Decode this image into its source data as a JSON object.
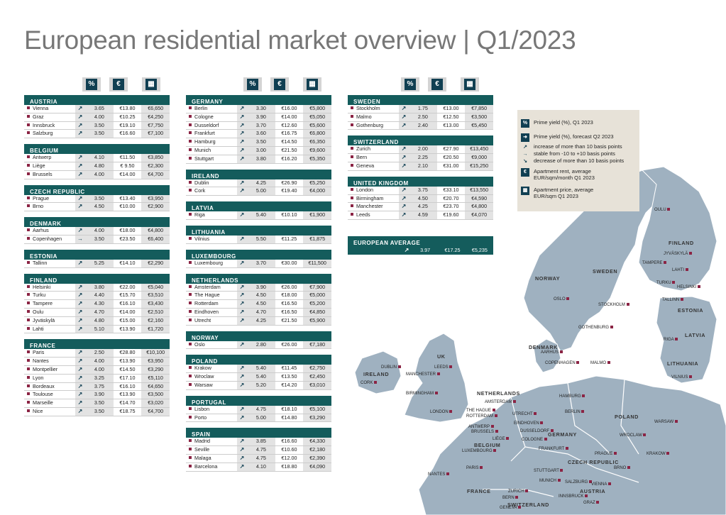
{
  "title": "European residential market overview | Q1/2023",
  "header_icons": [
    "%",
    "€",
    "calculator-icon"
  ],
  "col1": [
    {
      "country": "AUSTRIA",
      "rows": [
        [
          "Vienna",
          "↗",
          "3.65",
          "€13.80",
          "€6,650"
        ],
        [
          "Graz",
          "↗",
          "4.00",
          "€10.25",
          "€4,250"
        ],
        [
          "Innsbruck",
          "↗",
          "3.50",
          "€19.10",
          "€7,750"
        ],
        [
          "Salzburg",
          "↗",
          "3.50",
          "€16.60",
          "€7,100"
        ]
      ]
    },
    {
      "country": "BELGIUM",
      "rows": [
        [
          "Antwerp",
          "↗",
          "4.10",
          "€11.50",
          "€3,850"
        ],
        [
          "Liège",
          "↗",
          "4.80",
          "€ 9.50",
          "€2,300"
        ],
        [
          "Brussels",
          "↗",
          "4.00",
          "€14.00",
          "€4,700"
        ]
      ]
    },
    {
      "country": "CZECH REPUBLIC",
      "rows": [
        [
          "Prague",
          "↗",
          "3.50",
          "€13.40",
          "€3,950"
        ],
        [
          "Brno",
          "↗",
          "4.50",
          "€10.00",
          "€2,900"
        ]
      ]
    },
    {
      "country": "DENMARK",
      "rows": [
        [
          "Aarhus",
          "↗",
          "4.00",
          "€18.00",
          "€4,800"
        ],
        [
          "Copenhagen",
          "→",
          "3.50",
          "€23.50",
          "€6,400"
        ]
      ]
    },
    {
      "country": "ESTONIA",
      "rows": [
        [
          "Tallinn",
          "↗",
          "5.25",
          "€14.10",
          "€2,290"
        ]
      ]
    },
    {
      "country": "FINLAND",
      "rows": [
        [
          "Helsinki",
          "↗",
          "3.80",
          "€22.00",
          "€5,040"
        ],
        [
          "Turku",
          "↗",
          "4.40",
          "€15.70",
          "€3,510"
        ],
        [
          "Tampere",
          "↗",
          "4.30",
          "€16.10",
          "€3,430"
        ],
        [
          "Oulu",
          "↗",
          "4.70",
          "€14.00",
          "€2,510"
        ],
        [
          "Jyväskylä",
          "↗",
          "4.80",
          "€15.00",
          "€2,160"
        ],
        [
          "Lahti",
          "↗",
          "5.10",
          "€13.90",
          "€1,720"
        ]
      ]
    },
    {
      "country": "FRANCE",
      "rows": [
        [
          "Paris",
          "↗",
          "2.50",
          "€28.80",
          "€10,100"
        ],
        [
          "Nantes",
          "↗",
          "4.00",
          "€13.90",
          "€3,950"
        ],
        [
          "Montpellier",
          "↗",
          "4.00",
          "€14.50",
          "€3,290"
        ],
        [
          "Lyon",
          "↗",
          "3.25",
          "€17.10",
          "€5,110"
        ],
        [
          "Bordeaux",
          "↗",
          "3.75",
          "€16.10",
          "€4,650"
        ],
        [
          "Toulouse",
          "↗",
          "3.90",
          "€13.90",
          "€3,500"
        ],
        [
          "Marseille",
          "↗",
          "3.50",
          "€14.70",
          "€3,020"
        ],
        [
          "Nice",
          "↗",
          "3.50",
          "€18.75",
          "€4,700"
        ]
      ]
    }
  ],
  "col2": [
    {
      "country": "GERMANY",
      "rows": [
        [
          "Berlin",
          "↗",
          "3.30",
          "€16.00",
          "€5,800"
        ],
        [
          "Cologne",
          "↗",
          "3.90",
          "€14.00",
          "€5,050"
        ],
        [
          "Dusseldorf",
          "↗",
          "3.70",
          "€12.60",
          "€5,600"
        ],
        [
          "Frankfurt",
          "↗",
          "3.60",
          "€16.75",
          "€6,800"
        ],
        [
          "Hamburg",
          "↗",
          "3.50",
          "€14.50",
          "€6,350"
        ],
        [
          "Munich",
          "↗",
          "3.00",
          "€21.50",
          "€9,600"
        ],
        [
          "Stuttgart",
          "↗",
          "3.80",
          "€16.20",
          "€5,350"
        ]
      ]
    },
    {
      "country": "IRELAND",
      "rows": [
        [
          "Dublin",
          "↗",
          "4.25",
          "€26.90",
          "€5,250"
        ],
        [
          "Cork",
          "↗",
          "5.00",
          "€19.40",
          "€4,000"
        ]
      ]
    },
    {
      "country": "LATVIA",
      "rows": [
        [
          "Riga",
          "↗",
          "5.40",
          "€10.10",
          "€1,900"
        ]
      ]
    },
    {
      "country": "LITHUANIA",
      "rows": [
        [
          "Vilnius",
          "↗",
          "5.50",
          "€11.25",
          "€1,875"
        ]
      ]
    },
    {
      "country": "LUXEMBOURG",
      "rows": [
        [
          "Luxembourg",
          "↗",
          "3.70",
          "€30.00",
          "€11,500"
        ]
      ]
    },
    {
      "country": "NETHERLANDS",
      "rows": [
        [
          "Amsterdam",
          "↗",
          "3.90",
          "€26.00",
          "€7,900"
        ],
        [
          "The Hague",
          "↗",
          "4.50",
          "€18.00",
          "€5,000"
        ],
        [
          "Rotterdam",
          "↗",
          "4.50",
          "€16.50",
          "€5,200"
        ],
        [
          "Eindhoven",
          "↗",
          "4.70",
          "€16.50",
          "€4,850"
        ],
        [
          "Utrecht",
          "↗",
          "4.25",
          "€21.50",
          "€5,900"
        ]
      ]
    },
    {
      "country": "NORWAY",
      "rows": [
        [
          "Oslo",
          "↗",
          "2.80",
          "€26.00",
          "€7,180"
        ]
      ]
    },
    {
      "country": "POLAND",
      "rows": [
        [
          "Krakow",
          "↗",
          "5.40",
          "€11.45",
          "€2,750"
        ],
        [
          "Wroclaw",
          "↗",
          "5.40",
          "€13.50",
          "€2,450"
        ],
        [
          "Warsaw",
          "↗",
          "5.20",
          "€14.20",
          "€3,010"
        ]
      ]
    },
    {
      "country": "PORTUGAL",
      "rows": [
        [
          "Lisbon",
          "↗",
          "4.75",
          "€18.10",
          "€5,100"
        ],
        [
          "Porto",
          "↗",
          "5.00",
          "€14.80",
          "€3,290"
        ]
      ]
    },
    {
      "country": "SPAIN",
      "rows": [
        [
          "Madrid",
          "↗",
          "3.85",
          "€16.60",
          "€4,330"
        ],
        [
          "Seville",
          "↗",
          "4.75",
          "€10.60",
          "€2,180"
        ],
        [
          "Malaga",
          "↗",
          "4.75",
          "€12.00",
          "€2,390"
        ],
        [
          "Barcelona",
          "↗",
          "4.10",
          "€18.80",
          "€4,090"
        ]
      ]
    }
  ],
  "col3": [
    {
      "country": "SWEDEN",
      "rows": [
        [
          "Stockholm",
          "↗",
          "1.75",
          "€13.00",
          "€7,850"
        ],
        [
          "Malmo",
          "↗",
          "2.50",
          "€12.50",
          "€3,500"
        ],
        [
          "Gothenburg",
          "↗",
          "2.40",
          "€13.00",
          "€5,450"
        ]
      ]
    },
    {
      "country": "SWITZERLAND",
      "rows": [
        [
          "Zurich",
          "↗",
          "2.00",
          "€27.90",
          "€13,450"
        ],
        [
          "Bern",
          "↗",
          "2.25",
          "€20.50",
          "€9,000"
        ],
        [
          "Geneva",
          "↗",
          "2.10",
          "€31.00",
          "€15,250"
        ]
      ]
    },
    {
      "country": "UNITED KINGDOM",
      "rows": [
        [
          "London",
          "↗",
          "3.75",
          "€33.10",
          "€13,550"
        ],
        [
          "Birmingham",
          "↗",
          "4.50",
          "€20.70",
          "€4,590"
        ],
        [
          "Manchester",
          "↗",
          "4.25",
          "€23.70",
          "€4,800"
        ],
        [
          "Leeds",
          "↗",
          "4.59",
          "€19.60",
          "€4,070"
        ]
      ]
    }
  ],
  "european_average": {
    "label": "EUROPEAN AVERAGE",
    "arrow": "↗",
    "yield": "3.97",
    "rent": "€17.25",
    "price": "€5,235"
  },
  "legend": [
    {
      "icon": "%",
      "text": "Prime yield (%), Q1 2023"
    },
    {
      "icon": "➜",
      "text": "Prime yield (%), forecast Q2 2023"
    },
    {
      "icon": "↗",
      "text": "increase of more than 10 basis points"
    },
    {
      "icon": "→",
      "text": "stable from -10 to +10 basis points"
    },
    {
      "icon": "↘",
      "text": "decrease of more than 10 basis points"
    },
    {
      "icon": "€",
      "text": "Apartment rent, average EUR/sqm/month Q1 2023"
    },
    {
      "icon": "▦",
      "text": "Apartment price, average EUR/sqm Q1 2023"
    }
  ],
  "map_countries": [
    "NORWAY",
    "SWEDEN",
    "FINLAND",
    "ESTONIA",
    "LATVIA",
    "LITHUANIA",
    "DENMARK",
    "UK",
    "IRELAND",
    "NETHERLANDS",
    "BELGIUM",
    "GERMANY",
    "POLAND",
    "CZECH REPUBLIC",
    "FRANCE",
    "AUSTRIA",
    "SWITZERLAND"
  ],
  "map_cities": [
    "OULU",
    "JYVÄSKYLÄ",
    "TAMPERE",
    "LAHTI",
    "TURKU",
    "HELSINKI",
    "TALLINN",
    "OSLO",
    "STOCKHOLM",
    "GOTHENBURG",
    "RIGA",
    "AARHUS",
    "COPENHAGEN",
    "MALMO",
    "VILNIUS",
    "DUBLIN",
    "LEEDS",
    "MANCHESTER",
    "CORK",
    "BIRMINGHAM",
    "LONDON",
    "AMSTERDAM",
    "HAMBURG",
    "BERLIN",
    "THE HAGUE",
    "ROTTERDAM",
    "UTRECHT",
    "ANTWERP",
    "EINDHOVEN",
    "BRUSSELS",
    "DUSSELDORF",
    "LIÈGE",
    "COLOGNE",
    "WARSAW",
    "LUXEMBOURG",
    "FRANKFURT",
    "WROCLAW",
    "PRAGUE",
    "KRAKOW",
    "PARIS",
    "BRNO",
    "NANTES",
    "STUTTGART",
    "MUNICH",
    "SALZBURG",
    "VIENNA",
    "ZURICH",
    "INNSBRUCK",
    "BERN",
    "GRAZ",
    "GENEVA"
  ]
}
